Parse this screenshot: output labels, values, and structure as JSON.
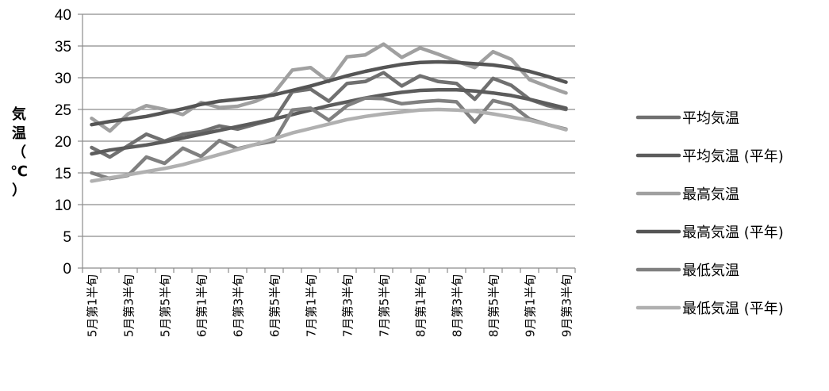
{
  "chart_data": {
    "type": "line",
    "title": "",
    "xlabel": "",
    "ylabel": "気温（℃）",
    "ylim": [
      0,
      40
    ],
    "yticks": [
      0,
      5,
      10,
      15,
      20,
      25,
      30,
      35,
      40
    ],
    "grid": "horizontal",
    "legend": "right",
    "categories": [
      "5月第1半旬",
      "5月第2半旬",
      "5月第3半旬",
      "5月第4半旬",
      "5月第5半旬",
      "5月第6半旬",
      "6月第1半旬",
      "6月第2半旬",
      "6月第3半旬",
      "6月第4半旬",
      "6月第5半旬",
      "6月第6半旬",
      "7月第1半旬",
      "7月第2半旬",
      "7月第3半旬",
      "7月第4半旬",
      "7月第5半旬",
      "7月第6半旬",
      "8月第1半旬",
      "8月第2半旬",
      "8月第3半旬",
      "8月第4半旬",
      "8月第5半旬",
      "8月第6半旬",
      "9月第1半旬",
      "9月第2半旬",
      "9月第3半旬"
    ],
    "tick_labels_shown": [
      "5月第1半旬",
      "5月第3半旬",
      "5月第5半旬",
      "6月第1半旬",
      "6月第3半旬",
      "6月第5半旬",
      "7月第1半旬",
      "7月第3半旬",
      "7月第5半旬",
      "8月第1半旬",
      "8月第3半旬",
      "8月第5半旬",
      "9月第1半旬",
      "9月第3半旬"
    ],
    "series": [
      {
        "name": "平均気温",
        "color": "#707070",
        "values": [
          19.0,
          17.5,
          19.3,
          21.1,
          20.0,
          21.1,
          21.5,
          22.4,
          21.9,
          22.7,
          23.4,
          27.8,
          28.2,
          26.3,
          29.1,
          29.4,
          30.8,
          28.7,
          30.3,
          29.4,
          29.1,
          26.6,
          29.9,
          28.8,
          26.6,
          25.6,
          25.0
        ]
      },
      {
        "name": "平均気温 (平年)",
        "color": "#5c5c5c",
        "values": [
          18.0,
          18.6,
          19.0,
          19.4,
          19.9,
          20.5,
          21.1,
          21.7,
          22.3,
          22.9,
          23.5,
          24.2,
          24.9,
          25.6,
          26.2,
          26.8,
          27.3,
          27.7,
          28.0,
          28.1,
          28.1,
          27.9,
          27.6,
          27.2,
          26.6,
          25.9,
          25.2
        ]
      },
      {
        "name": "最高気温",
        "color": "#a0a0a0",
        "values": [
          23.6,
          21.6,
          24.3,
          25.6,
          25.0,
          24.2,
          26.1,
          25.3,
          25.5,
          26.3,
          27.6,
          31.2,
          31.6,
          29.4,
          33.3,
          33.6,
          35.3,
          33.2,
          34.7,
          33.7,
          32.6,
          31.6,
          34.1,
          32.9,
          29.7,
          28.6,
          27.6
        ]
      },
      {
        "name": "最高気温 (平年)",
        "color": "#555555",
        "values": [
          22.6,
          23.1,
          23.5,
          23.9,
          24.5,
          25.1,
          25.8,
          26.3,
          26.6,
          26.9,
          27.3,
          28.0,
          28.7,
          29.5,
          30.3,
          31.0,
          31.6,
          32.1,
          32.4,
          32.5,
          32.4,
          32.2,
          32.0,
          31.6,
          31.0,
          30.2,
          29.3
        ]
      },
      {
        "name": "最低気温",
        "color": "#808080",
        "values": [
          15.0,
          14.1,
          14.6,
          17.5,
          16.5,
          18.9,
          17.6,
          20.1,
          18.8,
          19.5,
          20.0,
          24.9,
          25.2,
          23.3,
          25.6,
          26.8,
          26.7,
          25.9,
          26.2,
          26.4,
          26.2,
          23.0,
          26.4,
          25.7,
          23.5,
          22.6,
          21.9
        ]
      },
      {
        "name": "最低気温 (平年)",
        "color": "#b0b0b0",
        "values": [
          13.7,
          14.2,
          14.7,
          15.2,
          15.7,
          16.3,
          17.1,
          17.9,
          18.7,
          19.5,
          20.4,
          21.3,
          22.0,
          22.7,
          23.4,
          23.9,
          24.3,
          24.6,
          24.9,
          25.0,
          24.9,
          24.7,
          24.3,
          23.8,
          23.3,
          22.6,
          21.8
        ]
      }
    ]
  }
}
